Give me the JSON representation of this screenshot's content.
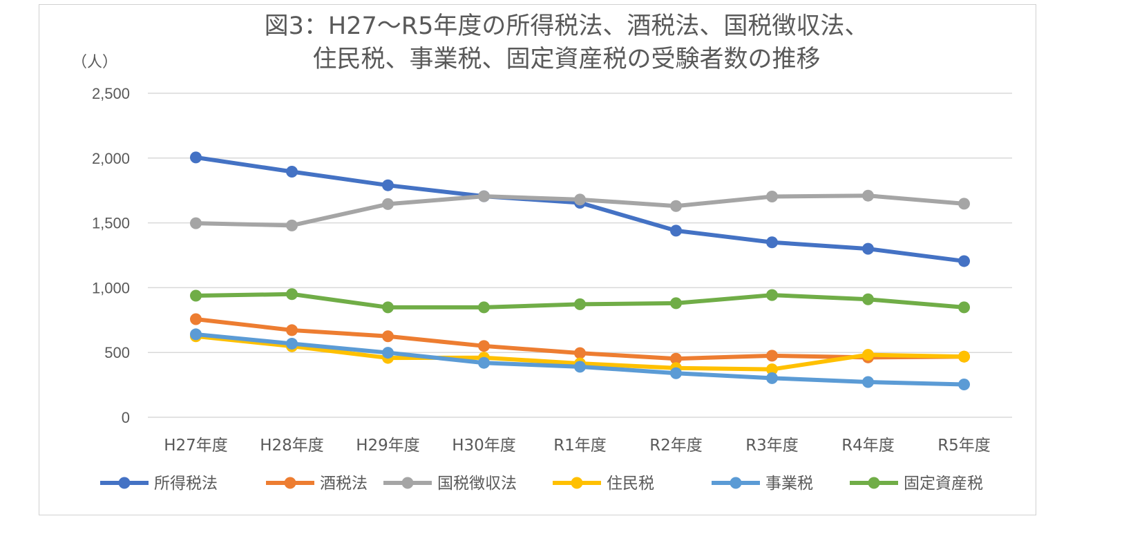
{
  "chart_data": {
    "type": "line",
    "title_lines": [
      "図3：H27～R5年度の所得税法、酒税法、国税徴収法、",
      "住民税、事業税、固定資産税の受験者数の推移"
    ],
    "ylabel": "（人）",
    "xlabel": "",
    "categories": [
      "H27年度",
      "H28年度",
      "H29年度",
      "H30年度",
      "R1年度",
      "R2年度",
      "R3年度",
      "R4年度",
      "R5年度"
    ],
    "ylim": [
      0,
      2500
    ],
    "yticks": [
      0,
      500,
      1000,
      1500,
      2000,
      2500
    ],
    "ytick_labels": [
      "0",
      "500",
      "1,000",
      "1,500",
      "2,000",
      "2,500"
    ],
    "grid": true,
    "legend_position": "bottom",
    "series": [
      {
        "name": "所得税法",
        "color": "#4472C4",
        "values": [
          2005,
          1895,
          1790,
          1705,
          1655,
          1440,
          1350,
          1300,
          1205
        ]
      },
      {
        "name": "酒税法",
        "color": "#ED7D31",
        "values": [
          757,
          672,
          625,
          550,
          495,
          452,
          475,
          462,
          468
        ]
      },
      {
        "name": "国税徴収法",
        "color": "#A5A5A5",
        "values": [
          1497,
          1480,
          1645,
          1705,
          1680,
          1630,
          1703,
          1710,
          1648
        ]
      },
      {
        "name": "住民税",
        "color": "#FFC000",
        "values": [
          625,
          548,
          458,
          460,
          415,
          380,
          370,
          482,
          468
        ]
      },
      {
        "name": "事業税",
        "color": "#5B9BD5",
        "values": [
          640,
          568,
          498,
          420,
          390,
          340,
          302,
          272,
          253
        ]
      },
      {
        "name": "固定資産税",
        "color": "#70AD47",
        "values": [
          938,
          950,
          848,
          848,
          872,
          880,
          943,
          910,
          848
        ]
      }
    ]
  }
}
